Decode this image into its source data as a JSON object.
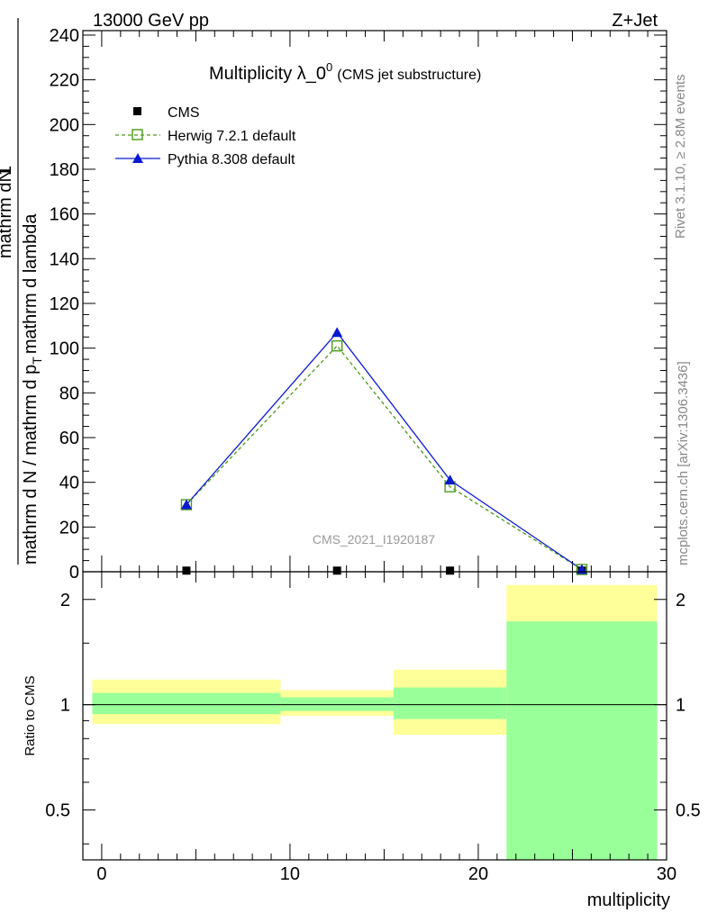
{
  "header": {
    "energy_label": "13000 GeV pp",
    "process_label": "Z+Jet"
  },
  "side_labels": {
    "rivet": "Rivet 3.1.10, ≥ 2.8M events",
    "mcplots": "mcplots.cern.ch [arXiv:1306.3436]"
  },
  "chart_data": [
    {
      "type": "line",
      "title": "Multiplicity λ_0",
      "title_superscript": "0",
      "subtitle": "(CMS jet substructure)",
      "watermark": "CMS_2021_I1920187",
      "ylabel_numerator": "mathrm dN",
      "ylabel_numerator_prefix": "mathrm d",
      "ylabel_numerator_suffix": "N",
      "ylabel_denominator": "mathrm d N / mathrm d p",
      "ylabel_den_mid": "mathrm d p",
      "ylabel_den_end": "mathrm d lambda",
      "ylabel_top": "mathrm d lambda",
      "ylabel_one": "1",
      "ylabel_sub": "T",
      "xlim": [
        -1,
        30
      ],
      "ylim": [
        0,
        242
      ],
      "yticks": [
        0,
        20,
        40,
        60,
        80,
        100,
        120,
        140,
        160,
        180,
        200,
        220,
        240
      ],
      "legend_position": "top-left",
      "series": [
        {
          "name": "CMS",
          "x": [
            4.5,
            12.5,
            18.5,
            25.5
          ],
          "y": [
            0.5,
            0.5,
            0.5,
            0.5
          ],
          "color": "#000000",
          "marker": "square"
        },
        {
          "name": "Herwig 7.2.1 default",
          "x": [
            4.5,
            12.5,
            18.5,
            25.5
          ],
          "y": [
            30,
            101,
            38,
            1
          ],
          "color": "#4a9a1a",
          "marker": "open-square",
          "dash": true
        },
        {
          "name": "Pythia 8.308 default",
          "x": [
            4.5,
            12.5,
            18.5,
            25.5
          ],
          "y": [
            30,
            107,
            41,
            1
          ],
          "color": "#0a1ad0",
          "marker": "triangle"
        }
      ]
    },
    {
      "type": "area",
      "ylabel": "Ratio to CMS",
      "xlabel": "multiplicity",
      "xlim": [
        -1,
        30
      ],
      "ylim": [
        0.36,
        2.4
      ],
      "log_y": true,
      "yticks": [
        0.5,
        1,
        2
      ],
      "xticks": [
        0,
        10,
        20,
        30
      ],
      "reference_line": 1,
      "bands": [
        {
          "x0": -0.5,
          "x1": 9.5,
          "outer": [
            0.88,
            1.18
          ],
          "inner": [
            0.94,
            1.08
          ]
        },
        {
          "x0": 9.5,
          "x1": 15.5,
          "outer": [
            0.93,
            1.1
          ],
          "inner": [
            0.96,
            1.05
          ]
        },
        {
          "x0": 15.5,
          "x1": 21.5,
          "outer": [
            0.82,
            1.26
          ],
          "inner": [
            0.91,
            1.12
          ]
        },
        {
          "x0": 21.5,
          "x1": 29.5,
          "outer": [
            0.36,
            2.2
          ],
          "inner": [
            0.36,
            1.73
          ]
        }
      ],
      "band_colors": {
        "outer": "#ffff99",
        "inner": "#99ff99"
      }
    }
  ]
}
